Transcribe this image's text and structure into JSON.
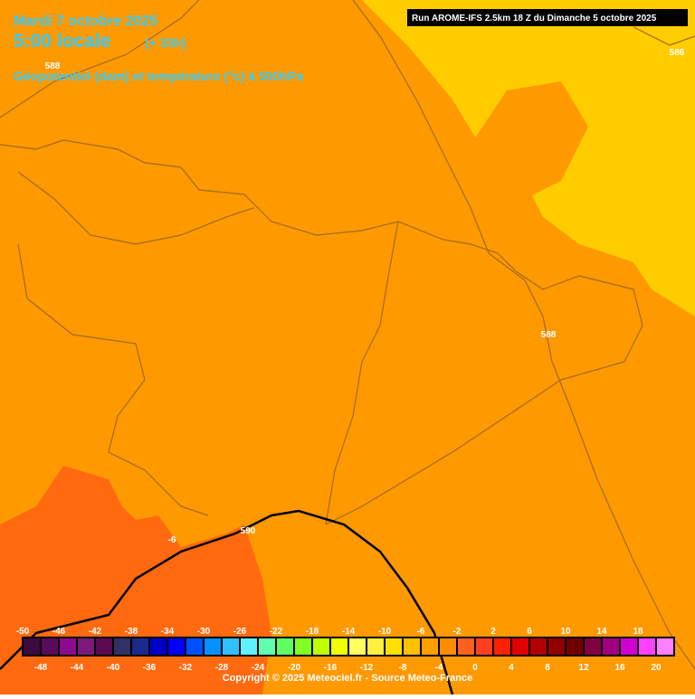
{
  "header": {
    "date": "Mardi 7 octobre 2025",
    "time": "5:00 locale",
    "lead": "(+ 33h)",
    "subtitle": "Géopotentiel (dam) et température (°c) à 500hPa"
  },
  "run_info": "Run AROME-IFS 2.5km 18 Z du Dimanche 5 octobre 2025",
  "contour_labels": [
    588,
    586,
    588,
    590,
    -6
  ],
  "colorbar": {
    "ticks": [
      -50,
      -48,
      -46,
      -44,
      -42,
      -40,
      -38,
      -36,
      -34,
      -32,
      -30,
      -28,
      -26,
      -24,
      -22,
      -20,
      -18,
      -16,
      -14,
      -12,
      -10,
      -8,
      -6,
      -4,
      -2,
      0,
      2,
      4,
      6,
      8,
      10,
      12,
      14,
      16,
      18,
      20
    ],
    "colors": [
      "#3c0a3c",
      "#5a0a5a",
      "#8c0a8c",
      "#7a1a7a",
      "#5a0a50",
      "#303064",
      "#1a2a8c",
      "#0000c8",
      "#0000ff",
      "#0050ff",
      "#0090ff",
      "#30c0ff",
      "#60f0ff",
      "#60ffb0",
      "#60ff60",
      "#80ff20",
      "#c0ff00",
      "#f0ff00",
      "#ffff60",
      "#fff040",
      "#ffe000",
      "#ffc000",
      "#ffa000",
      "#ff8c00",
      "#ff6020",
      "#ff4020",
      "#ff2000",
      "#e00000",
      "#b00000",
      "#900000",
      "#700000",
      "#800040",
      "#a00080",
      "#d000d0",
      "#ff40ff",
      "#ff80ff"
    ]
  },
  "copyright": "Copyright © 2025 Meteociel.fr - Source Meteo-France"
}
